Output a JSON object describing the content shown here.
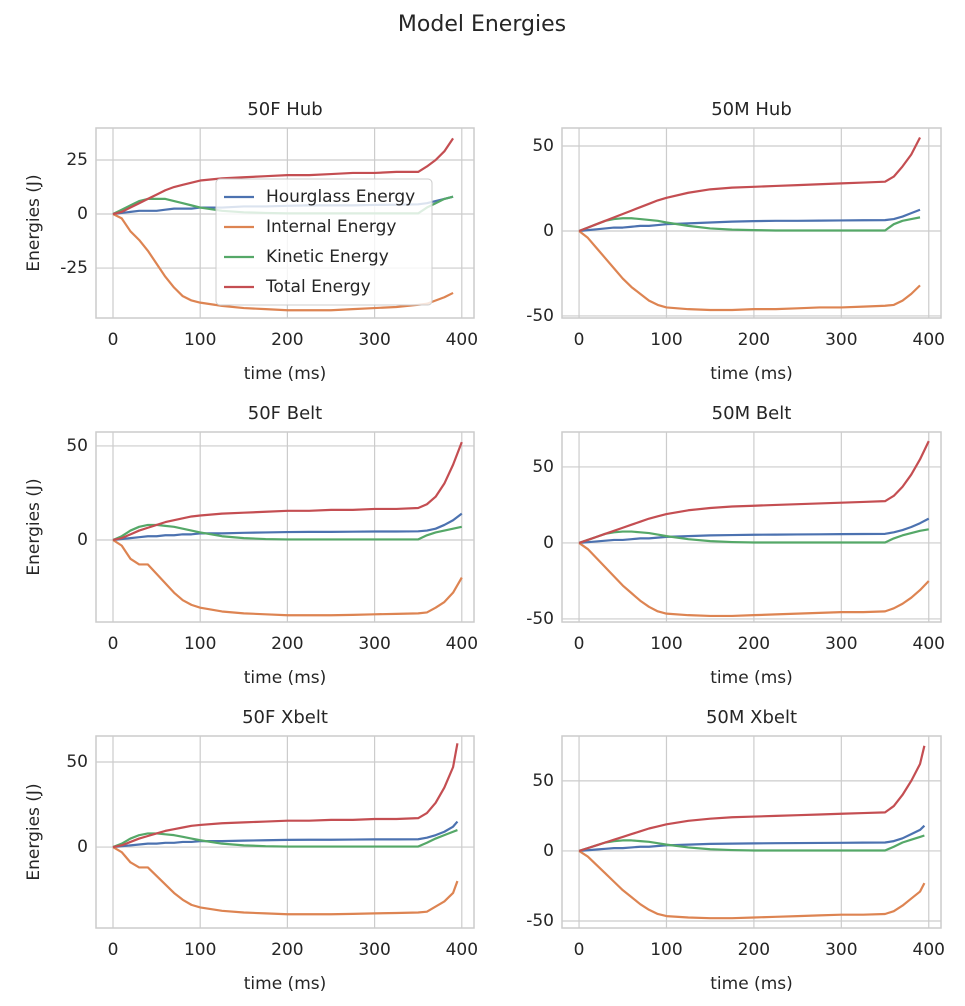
{
  "title": "Model Energies",
  "chart_data": [
    {
      "type": "line",
      "title": "50F Hub",
      "xlabel": "time (ms)",
      "ylabel": "Energies (J)",
      "xlim": [
        -19.5,
        414
      ],
      "xticks": [
        0,
        100,
        200,
        300,
        400
      ],
      "ylim": [
        -48.1,
        39.8
      ],
      "yticks": [
        -25,
        0,
        25
      ],
      "grid": true,
      "legend": "lower right",
      "x": [
        0,
        10,
        20,
        30,
        40,
        50,
        60,
        70,
        80,
        90,
        100,
        125,
        150,
        175,
        200,
        225,
        250,
        275,
        300,
        325,
        350,
        360,
        370,
        380,
        390
      ],
      "series": [
        {
          "name": "Hourglass Energy",
          "color": "#4c72b0",
          "values": [
            0,
            0.5,
            1,
            1.5,
            1.5,
            1.5,
            2,
            2.5,
            2.5,
            2.5,
            3,
            3,
            3.5,
            3.5,
            3.8,
            4,
            4,
            4,
            4.2,
            4.3,
            4.5,
            5,
            6,
            7,
            8
          ]
        },
        {
          "name": "Internal Energy",
          "color": "#dd8452",
          "values": [
            0,
            -2,
            -8,
            -12,
            -17,
            -23,
            -29,
            -34,
            -38,
            -40,
            -41,
            -42.5,
            -43.5,
            -44,
            -44.5,
            -44.5,
            -44.5,
            -44,
            -43.5,
            -43,
            -42,
            -41.5,
            -40,
            -38.5,
            -36.5
          ]
        },
        {
          "name": "Kinetic Energy",
          "color": "#55a868",
          "values": [
            0,
            2,
            4,
            6,
            7,
            7,
            7,
            6,
            5,
            4,
            3,
            1.5,
            0.8,
            0.5,
            0.3,
            0.3,
            0.3,
            0.3,
            0.3,
            0.3,
            0.3,
            3,
            5,
            7,
            8
          ]
        },
        {
          "name": "Total Energy",
          "color": "#c44e52",
          "values": [
            0,
            1,
            3,
            5,
            7,
            9,
            11,
            12.5,
            13.5,
            14.5,
            15.5,
            16.5,
            17,
            17.5,
            18,
            18,
            18.5,
            19,
            19,
            19.5,
            19.5,
            22,
            25,
            29,
            35
          ]
        }
      ]
    },
    {
      "type": "line",
      "title": "50M Hub",
      "xlabel": "time (ms)",
      "xlim": [
        -19.5,
        414
      ],
      "xticks": [
        0,
        100,
        200,
        300,
        400
      ],
      "ylim": [
        -51.2,
        60.6
      ],
      "yticks": [
        -50,
        0,
        50
      ],
      "grid": true,
      "x": [
        0,
        10,
        20,
        30,
        40,
        50,
        60,
        70,
        80,
        90,
        100,
        125,
        150,
        175,
        200,
        225,
        250,
        275,
        300,
        325,
        350,
        360,
        370,
        380,
        390
      ],
      "series": [
        {
          "name": "Hourglass Energy",
          "color": "#4c72b0",
          "values": [
            0,
            0.5,
            1,
            1.5,
            2,
            2,
            2.5,
            3,
            3,
            3.5,
            4,
            4.5,
            5,
            5.5,
            5.8,
            6,
            6,
            6.1,
            6.2,
            6.3,
            6.4,
            7,
            8.5,
            10.5,
            12.5
          ]
        },
        {
          "name": "Internal Energy",
          "color": "#dd8452",
          "values": [
            0,
            -4,
            -10,
            -16,
            -22,
            -28,
            -33,
            -37,
            -41,
            -43.5,
            -45,
            -46,
            -46.5,
            -46.5,
            -46,
            -46,
            -45.5,
            -45,
            -45,
            -44.5,
            -44,
            -43.5,
            -41,
            -37,
            -32
          ]
        },
        {
          "name": "Kinetic Energy",
          "color": "#55a868",
          "values": [
            0,
            2,
            4,
            6,
            7,
            7.5,
            7.5,
            7,
            6.5,
            6,
            5,
            3,
            1.5,
            0.8,
            0.5,
            0.3,
            0.3,
            0.3,
            0.3,
            0.3,
            0.3,
            4,
            6,
            7,
            8
          ]
        },
        {
          "name": "Total Energy",
          "color": "#c44e52",
          "values": [
            0,
            2,
            4,
            6,
            8,
            10,
            12,
            14,
            16,
            18,
            19.5,
            22.5,
            24.5,
            25.5,
            26,
            26.5,
            27,
            27.5,
            28,
            28.5,
            29,
            32,
            38,
            45,
            55
          ]
        }
      ]
    },
    {
      "type": "line",
      "title": "50F Belt",
      "xlabel": "time (ms)",
      "ylabel": "Energies (J)",
      "xlim": [
        -19.5,
        414
      ],
      "xticks": [
        0,
        100,
        200,
        300,
        400
      ],
      "ylim": [
        -43.6,
        57.4
      ],
      "yticks": [
        0,
        50
      ],
      "grid": true,
      "x": [
        0,
        10,
        20,
        30,
        40,
        50,
        60,
        70,
        80,
        90,
        100,
        125,
        150,
        175,
        200,
        225,
        250,
        275,
        300,
        325,
        350,
        360,
        370,
        380,
        390,
        400
      ],
      "series": [
        {
          "name": "Hourglass Energy",
          "color": "#4c72b0",
          "values": [
            0,
            0.5,
            1,
            1.5,
            2,
            2,
            2.5,
            2.5,
            3,
            3,
            3.5,
            3.5,
            3.8,
            4,
            4.2,
            4.3,
            4.3,
            4.4,
            4.5,
            4.5,
            4.6,
            5,
            6,
            8,
            10.5,
            14
          ]
        },
        {
          "name": "Internal Energy",
          "color": "#dd8452",
          "values": [
            0,
            -3,
            -10,
            -13,
            -13,
            -18,
            -23,
            -28,
            -32,
            -34.5,
            -36,
            -38,
            -39,
            -39.5,
            -40,
            -40,
            -40,
            -39.8,
            -39.5,
            -39.3,
            -39,
            -38.5,
            -36,
            -33,
            -28,
            -20
          ]
        },
        {
          "name": "Kinetic Energy",
          "color": "#55a868",
          "values": [
            0,
            2,
            5,
            7,
            8,
            8,
            7.5,
            7,
            6,
            5,
            4,
            2,
            1,
            0.5,
            0.3,
            0.3,
            0.3,
            0.3,
            0.3,
            0.3,
            0.3,
            2.5,
            4,
            5,
            6,
            7
          ]
        },
        {
          "name": "Total Energy",
          "color": "#c44e52",
          "values": [
            0,
            1,
            3,
            5,
            6.5,
            8,
            9.5,
            10.5,
            11.5,
            12.5,
            13,
            14,
            14.5,
            15,
            15.5,
            15.5,
            16,
            16,
            16.5,
            16.5,
            17,
            19,
            23,
            30,
            40,
            52
          ]
        }
      ]
    },
    {
      "type": "line",
      "title": "50M Belt",
      "xlabel": "time (ms)",
      "xlim": [
        -19.5,
        414
      ],
      "xticks": [
        0,
        100,
        200,
        300,
        400
      ],
      "ylim": [
        -52,
        73
      ],
      "yticks": [
        -50,
        0,
        50
      ],
      "grid": true,
      "x": [
        0,
        10,
        20,
        30,
        40,
        50,
        60,
        70,
        80,
        90,
        100,
        125,
        150,
        175,
        200,
        225,
        250,
        275,
        300,
        325,
        350,
        360,
        370,
        380,
        390,
        400
      ],
      "series": [
        {
          "name": "Hourglass Energy",
          "color": "#4c72b0",
          "values": [
            0,
            0.5,
            1,
            1.5,
            2,
            2,
            2.5,
            3,
            3,
            3.5,
            4,
            4.5,
            5,
            5.2,
            5.4,
            5.5,
            5.6,
            5.7,
            5.8,
            5.9,
            6,
            7,
            8.5,
            10.5,
            13,
            16
          ]
        },
        {
          "name": "Internal Energy",
          "color": "#dd8452",
          "values": [
            0,
            -4,
            -10,
            -16,
            -22,
            -28,
            -33,
            -38,
            -42,
            -45,
            -46.5,
            -47.5,
            -48,
            -48,
            -47.5,
            -47,
            -46.5,
            -46,
            -45.5,
            -45.5,
            -45,
            -43,
            -40,
            -36,
            -31,
            -25
          ]
        },
        {
          "name": "Kinetic Energy",
          "color": "#55a868",
          "values": [
            0,
            2,
            4,
            6,
            7,
            7.5,
            7.5,
            7,
            6.5,
            5.5,
            4.5,
            2.5,
            1.2,
            0.6,
            0.3,
            0.3,
            0.3,
            0.3,
            0.3,
            0.3,
            0.3,
            3,
            5,
            6.5,
            8,
            9
          ]
        },
        {
          "name": "Total Energy",
          "color": "#c44e52",
          "values": [
            0,
            2,
            4,
            6,
            8,
            10,
            12,
            14,
            16,
            17.5,
            19,
            21.5,
            23,
            24,
            24.5,
            25,
            25.5,
            26,
            26.5,
            27,
            27.5,
            31,
            37,
            45,
            55,
            67
          ]
        }
      ]
    },
    {
      "type": "line",
      "title": "50F Xbelt",
      "xlabel": "time (ms)",
      "ylabel": "Energies (J)",
      "xlim": [
        -19.5,
        414
      ],
      "xticks": [
        0,
        100,
        200,
        300,
        400
      ],
      "ylim": [
        -47.6,
        65.3
      ],
      "yticks": [
        0,
        50
      ],
      "grid": true,
      "x": [
        0,
        10,
        20,
        30,
        40,
        50,
        60,
        70,
        80,
        90,
        100,
        125,
        150,
        175,
        200,
        225,
        250,
        275,
        300,
        325,
        350,
        360,
        370,
        380,
        390,
        395
      ],
      "series": [
        {
          "name": "Hourglass Energy",
          "color": "#4c72b0",
          "values": [
            0,
            0.5,
            1,
            1.5,
            2,
            2,
            2.5,
            2.5,
            3,
            3,
            3.5,
            3.5,
            3.8,
            4,
            4.2,
            4.3,
            4.3,
            4.4,
            4.5,
            4.5,
            4.6,
            5.5,
            7,
            9,
            12,
            15
          ]
        },
        {
          "name": "Internal Energy",
          "color": "#dd8452",
          "values": [
            0,
            -3,
            -9,
            -12,
            -12,
            -17,
            -22,
            -27,
            -31,
            -34,
            -35.5,
            -37.5,
            -38.5,
            -39,
            -39.5,
            -39.5,
            -39.5,
            -39.3,
            -39,
            -38.8,
            -38.5,
            -38,
            -35,
            -32,
            -27,
            -20
          ]
        },
        {
          "name": "Kinetic Energy",
          "color": "#55a868",
          "values": [
            0,
            2,
            5,
            7,
            8,
            8,
            7.5,
            7,
            6,
            5,
            4,
            2,
            1,
            0.5,
            0.3,
            0.3,
            0.3,
            0.3,
            0.3,
            0.3,
            0.3,
            2.5,
            5,
            7,
            9,
            10
          ]
        },
        {
          "name": "Total Energy",
          "color": "#c44e52",
          "values": [
            0,
            1,
            3,
            5,
            6.5,
            8,
            9.5,
            10.5,
            11.5,
            12.5,
            13,
            14,
            14.5,
            15,
            15.5,
            15.5,
            16,
            16,
            16.5,
            16.5,
            17,
            20,
            26,
            35,
            47,
            61
          ]
        }
      ]
    },
    {
      "type": "line",
      "title": "50M Xbelt",
      "xlabel": "time (ms)",
      "xlim": [
        -19.5,
        414
      ],
      "xticks": [
        0,
        100,
        200,
        300,
        400
      ],
      "ylim": [
        -55,
        82
      ],
      "yticks": [
        -50,
        0,
        50
      ],
      "grid": true,
      "x": [
        0,
        10,
        20,
        30,
        40,
        50,
        60,
        70,
        80,
        90,
        100,
        125,
        150,
        175,
        200,
        225,
        250,
        275,
        300,
        325,
        350,
        360,
        370,
        380,
        390,
        395
      ],
      "series": [
        {
          "name": "Hourglass Energy",
          "color": "#4c72b0",
          "values": [
            0,
            0.5,
            1,
            1.5,
            2,
            2,
            2.5,
            3,
            3,
            3.5,
            4,
            4.5,
            5,
            5.2,
            5.4,
            5.5,
            5.6,
            5.7,
            5.8,
            5.9,
            6,
            7,
            9,
            12,
            15,
            18
          ]
        },
        {
          "name": "Internal Energy",
          "color": "#dd8452",
          "values": [
            0,
            -4,
            -10,
            -16,
            -22,
            -28,
            -33,
            -38,
            -42,
            -45,
            -46.5,
            -47.5,
            -48,
            -48,
            -47.5,
            -47,
            -46.5,
            -46,
            -45.5,
            -45.5,
            -45,
            -43,
            -39,
            -34,
            -29,
            -23
          ]
        },
        {
          "name": "Kinetic Energy",
          "color": "#55a868",
          "values": [
            0,
            2,
            4,
            6,
            7,
            7.5,
            7.5,
            7,
            6.5,
            5.5,
            4.5,
            2.5,
            1.2,
            0.6,
            0.3,
            0.3,
            0.3,
            0.3,
            0.3,
            0.3,
            0.3,
            3,
            6,
            8,
            10,
            11
          ]
        },
        {
          "name": "Total Energy",
          "color": "#c44e52",
          "values": [
            0,
            2,
            4,
            6,
            8,
            10,
            12,
            14,
            16,
            17.5,
            19,
            21.5,
            23,
            24,
            24.5,
            25,
            25.5,
            26,
            26.5,
            27,
            27.5,
            32,
            40,
            50,
            62,
            75
          ]
        }
      ]
    }
  ]
}
